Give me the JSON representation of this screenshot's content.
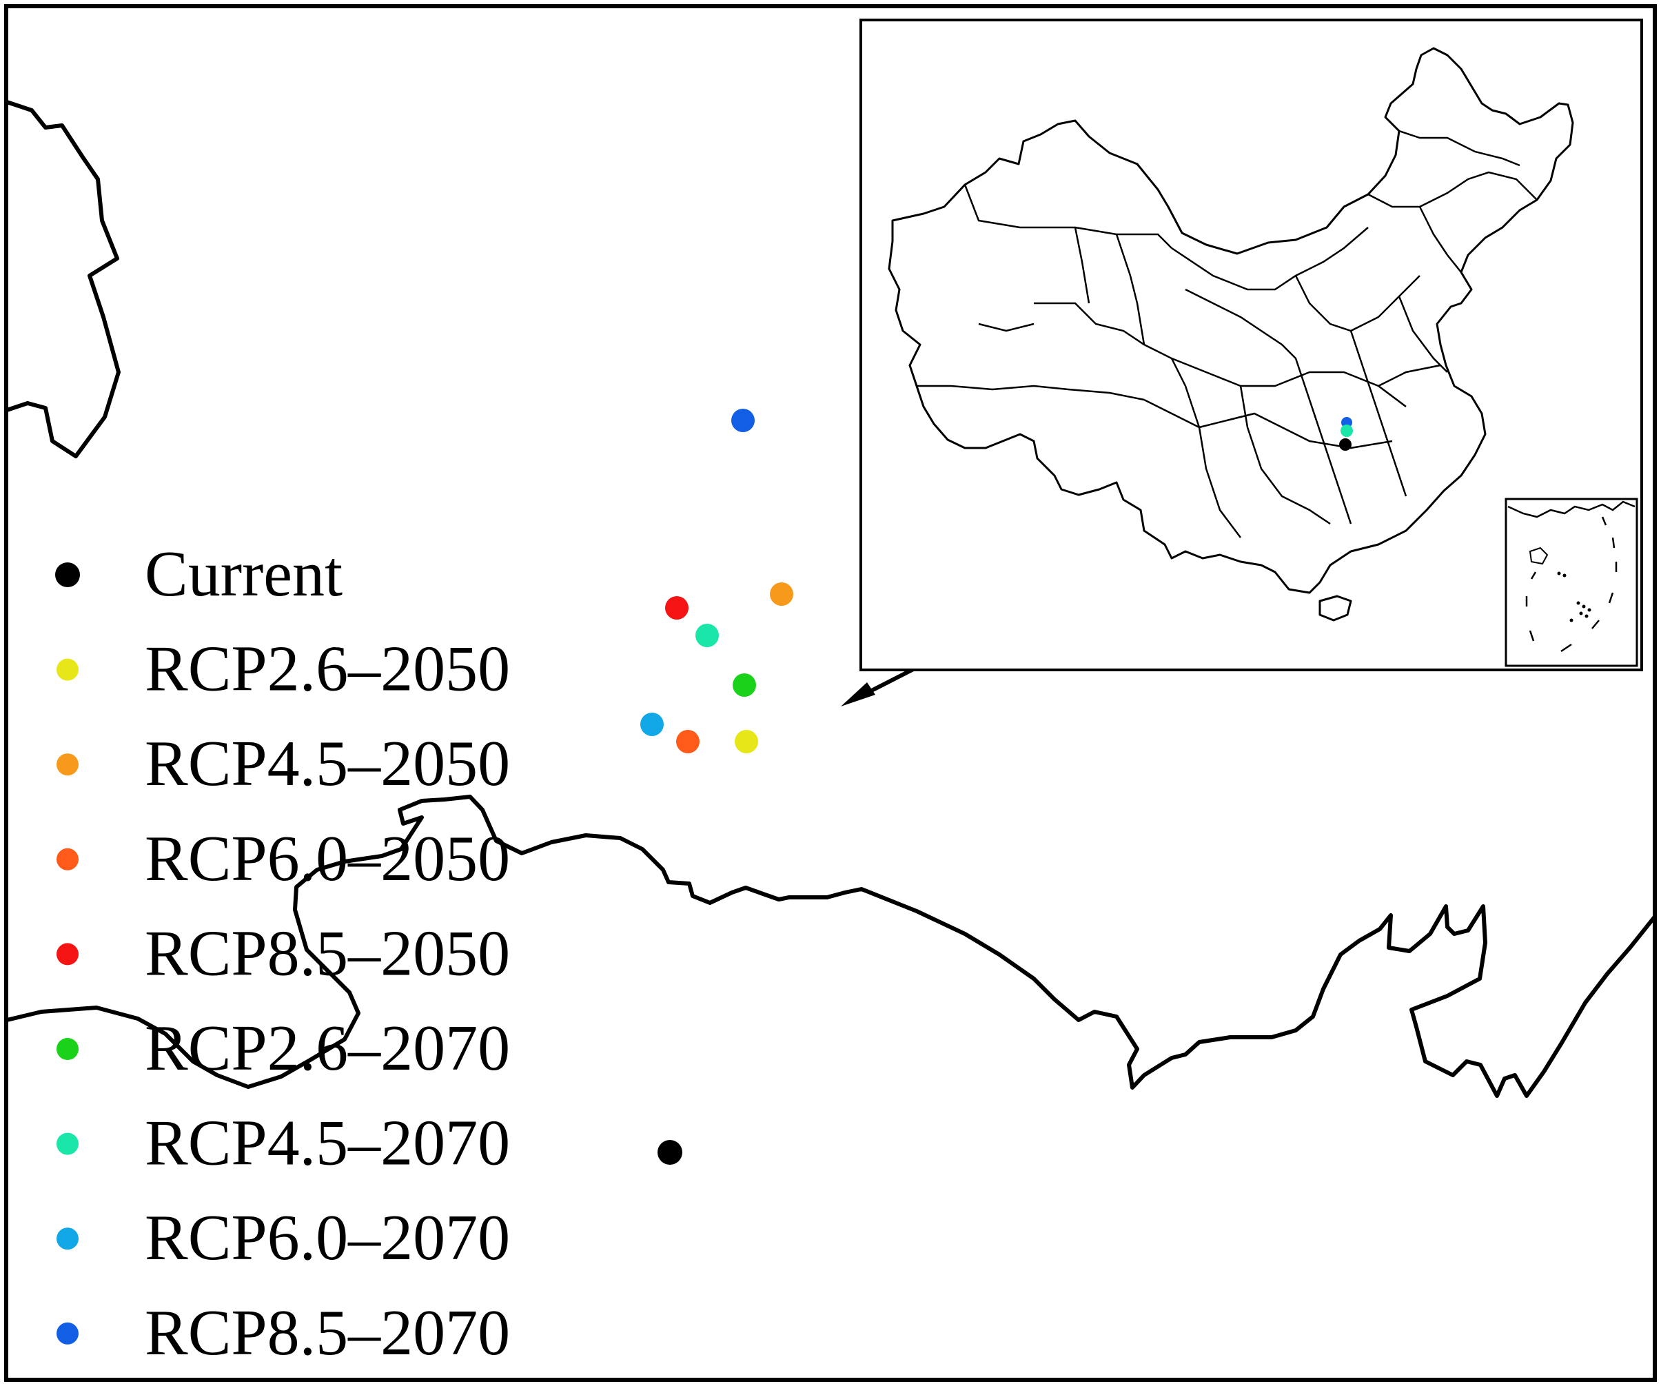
{
  "legend": {
    "items": [
      {
        "label": "Current",
        "color": "#000000"
      },
      {
        "label": "RCP2.6–2050",
        "color": "#e6e619"
      },
      {
        "label": "RCP4.5–2050",
        "color": "#f79a1b"
      },
      {
        "label": "RCP6.0–2050",
        "color": "#ff5a1a"
      },
      {
        "label": "RCP8.5–2050",
        "color": "#f51414"
      },
      {
        "label": "RCP2.6–2070",
        "color": "#1ad21a"
      },
      {
        "label": "RCP4.5–2070",
        "color": "#1ae6aa"
      },
      {
        "label": "RCP6.0–2070",
        "color": "#12a7e6"
      },
      {
        "label": "RCP8.5–2070",
        "color": "#125fe6"
      }
    ]
  },
  "centroids": [
    {
      "scenario": "Current",
      "color": "#000000"
    },
    {
      "scenario": "RCP2.6–2050",
      "color": "#e6e619"
    },
    {
      "scenario": "RCP4.5–2050",
      "color": "#f79a1b"
    },
    {
      "scenario": "RCP6.0–2050",
      "color": "#ff5a1a"
    },
    {
      "scenario": "RCP8.5–2050",
      "color": "#f51414"
    },
    {
      "scenario": "RCP2.6–2070",
      "color": "#1ad21a"
    },
    {
      "scenario": "RCP4.5–2070",
      "color": "#1ae6aa"
    },
    {
      "scenario": "RCP6.0–2070",
      "color": "#12a7e6"
    },
    {
      "scenario": "RCP8.5–2070",
      "color": "#125fe6"
    }
  ]
}
